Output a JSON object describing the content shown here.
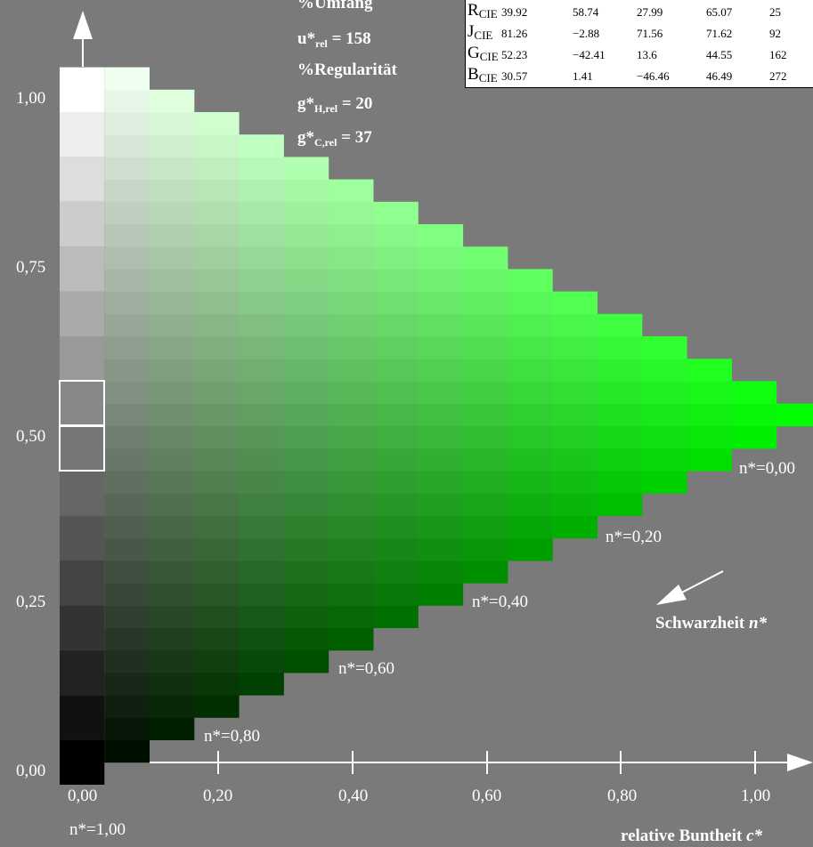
{
  "stats": {
    "umfang_heading": "%Umfang",
    "u_rel": {
      "main": "u*",
      "sub": "rel",
      "value": " = 158"
    },
    "regularitaet_heading": "%Regularität",
    "g_h_rel": {
      "main": "g*",
      "sub": "H,rel",
      "value": " = 20"
    },
    "g_c_rel": {
      "main": "g*",
      "sub": "C,rel",
      "value": " = 37"
    }
  },
  "cie_table": {
    "rows": [
      {
        "letter": "R",
        "sub": "CIE",
        "values": [
          "39.92",
          "58.74",
          "27.99",
          "65.07",
          "25"
        ]
      },
      {
        "letter": "J",
        "sub": "CIE",
        "values": [
          "81.26",
          "−2.88",
          "71.56",
          "71.62",
          "92"
        ]
      },
      {
        "letter": "G",
        "sub": "CIE",
        "values": [
          "52.23",
          "−42.41",
          "13.6",
          "44.55",
          "162"
        ]
      },
      {
        "letter": "B",
        "sub": "CIE",
        "values": [
          "30.57",
          "1.41",
          "−46.46",
          "46.49",
          "272"
        ]
      }
    ]
  },
  "y_axis": {
    "ticks": [
      "1,00",
      "0,75",
      "0,50",
      "0,25",
      "0,00"
    ]
  },
  "x_axis": {
    "ticks": [
      "0,00",
      "0,20",
      "0,40",
      "0,60",
      "0,80",
      "1,00"
    ],
    "title_text": "relative Buntheit ",
    "title_var": "c*"
  },
  "blackness": {
    "labels": [
      "n*=0,00",
      "n*=0,20",
      "n*=0,40",
      "n*=0,60",
      "n*=0,80",
      "n*=1,00"
    ],
    "arrow_text": "Schwarzheit ",
    "arrow_var": "n*"
  },
  "colors": {
    "background": "#7a7a7a",
    "axis": "#ffffff",
    "hue_max": "#00ff00",
    "marker_outline": "#ffffff"
  }
}
